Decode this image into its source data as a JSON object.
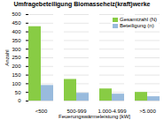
{
  "chart_data": {
    "type": "bar",
    "title": "Umfragebeteiligung Biomasseheiz(kraft)werke",
    "xlabel": "Feuerungswärmeleistung [kW]",
    "ylabel": "Anzahl",
    "categories": [
      "<500",
      "500-999",
      "1.000-4.999",
      ">5.000"
    ],
    "series": [
      {
        "name": "Gesamtzahl (N)",
        "color": "#88cc44",
        "values": [
          430,
          125,
          70,
          50
        ]
      },
      {
        "name": "Beteiligung (n)",
        "color": "#99bbdd",
        "values": [
          90,
          45,
          40,
          25
        ]
      }
    ],
    "ylim": [
      0,
      500
    ],
    "yticks": [
      0,
      50,
      100,
      150,
      200,
      250,
      300,
      350,
      400,
      450,
      500
    ],
    "grid": true,
    "legend": "upper right"
  }
}
